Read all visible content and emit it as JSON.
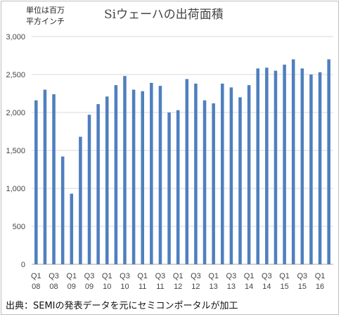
{
  "chart_data": {
    "type": "bar",
    "title": "Siウェーハの出荷面積",
    "unit_label": [
      "単位は百万",
      "平方インチ"
    ],
    "source_note": "出典：SEMIの発表データを元にセミコンポータルが加工",
    "ylim": [
      0,
      3000
    ],
    "yticks": [
      "0",
      "500",
      "1,000",
      "1,500",
      "2,000",
      "2,500",
      "3,000"
    ],
    "xtick_labels": [
      [
        "Q1",
        "08"
      ],
      [
        "Q3",
        "08"
      ],
      [
        "Q1",
        "09"
      ],
      [
        "Q3",
        "09"
      ],
      [
        "Q1",
        "10"
      ],
      [
        "Q3",
        "10"
      ],
      [
        "Q1",
        "11"
      ],
      [
        "Q3",
        "11"
      ],
      [
        "Q1",
        "12"
      ],
      [
        "Q3",
        "12"
      ],
      [
        "Q1",
        "13"
      ],
      [
        "Q3",
        "13"
      ],
      [
        "Q1",
        "14"
      ],
      [
        "Q3",
        "14"
      ],
      [
        "Q1",
        "15"
      ],
      [
        "Q3",
        "15"
      ],
      [
        "Q1",
        "16"
      ]
    ],
    "categories": [
      "Q1 08",
      "Q2 08",
      "Q3 08",
      "Q4 08",
      "Q1 09",
      "Q2 09",
      "Q3 09",
      "Q4 09",
      "Q1 10",
      "Q2 10",
      "Q3 10",
      "Q4 10",
      "Q1 11",
      "Q2 11",
      "Q3 11",
      "Q4 11",
      "Q1 12",
      "Q2 12",
      "Q3 12",
      "Q4 12",
      "Q1 13",
      "Q2 13",
      "Q3 13",
      "Q4 13",
      "Q1 14",
      "Q2 14",
      "Q3 14",
      "Q4 14",
      "Q1 15",
      "Q2 15",
      "Q3 15",
      "Q4 15",
      "Q1 16",
      "Q2 16"
    ],
    "values": [
      2160,
      2300,
      2240,
      1420,
      930,
      1680,
      1970,
      2110,
      2210,
      2360,
      2480,
      2300,
      2280,
      2390,
      2350,
      2000,
      2030,
      2440,
      2380,
      2160,
      2120,
      2380,
      2330,
      2200,
      2360,
      2580,
      2590,
      2550,
      2630,
      2700,
      2580,
      2500,
      2530,
      2700
    ],
    "grid": true,
    "colors": {
      "bar": "#4f7fbf",
      "grid": "#d9d9d9",
      "axis": "#a6a6a6"
    }
  }
}
